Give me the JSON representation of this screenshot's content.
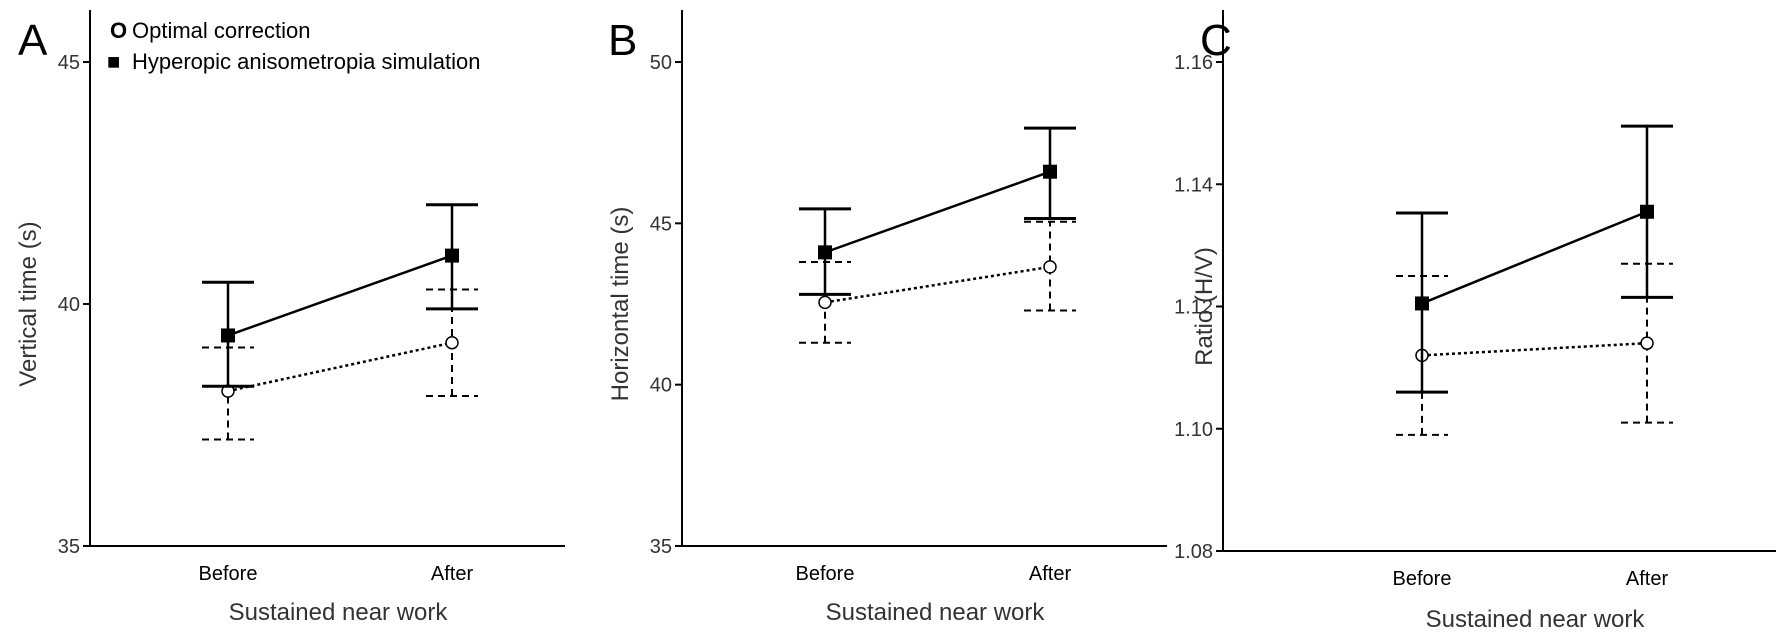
{
  "legend": {
    "entries": [
      {
        "marker": "O",
        "label": "Optimal correction"
      },
      {
        "marker": "■",
        "label": "Hyperopic anisometropia simulation"
      }
    ]
  },
  "chart_data": [
    {
      "panel": "A",
      "type": "line",
      "xlabel": "Sustained near work",
      "ylabel": "Vertical time (s)",
      "categories": [
        "Before",
        "After"
      ],
      "ylim": [
        35,
        45
      ],
      "yticks": [
        "35",
        "40",
        "45"
      ],
      "series": [
        {
          "name": "Optimal correction",
          "values": [
            38.2,
            39.2
          ],
          "ci_low": [
            37.2,
            38.1
          ],
          "ci_high": [
            39.1,
            40.3
          ],
          "marker": "circle",
          "line": "dotted",
          "errorbar": "dashed"
        },
        {
          "name": "Hyperopic anisometropia simulation",
          "values": [
            39.35,
            41.0
          ],
          "ci_low": [
            38.3,
            39.9
          ],
          "ci_high": [
            40.45,
            42.05
          ],
          "marker": "square",
          "line": "solid",
          "errorbar": "solid"
        }
      ]
    },
    {
      "panel": "B",
      "type": "line",
      "xlabel": "Sustained near work",
      "ylabel": "Horizontal time (s)",
      "categories": [
        "Before",
        "After"
      ],
      "ylim": [
        35,
        50
      ],
      "yticks": [
        "35",
        "40",
        "45",
        "50"
      ],
      "series": [
        {
          "name": "Optimal correction",
          "values": [
            42.55,
            43.65
          ],
          "ci_low": [
            41.3,
            42.3
          ],
          "ci_high": [
            43.8,
            45.05
          ],
          "marker": "circle",
          "line": "dotted",
          "errorbar": "dashed"
        },
        {
          "name": "Hyperopic anisometropia simulation",
          "values": [
            44.1,
            46.6
          ],
          "ci_low": [
            42.8,
            45.15
          ],
          "ci_high": [
            45.45,
            47.95
          ],
          "marker": "square",
          "line": "solid",
          "errorbar": "solid"
        }
      ]
    },
    {
      "panel": "C",
      "type": "line",
      "xlabel": "Sustained near work",
      "ylabel": "Ratio (H/V)",
      "categories": [
        "Before",
        "After"
      ],
      "ylim": [
        1.08,
        1.16
      ],
      "yticks": [
        "1.08",
        "1.10",
        "1.12",
        "1.14",
        "1.16"
      ],
      "series": [
        {
          "name": "Optimal correction",
          "values": [
            1.112,
            1.114
          ],
          "ci_low": [
            1.099,
            1.101
          ],
          "ci_high": [
            1.125,
            1.127
          ],
          "marker": "circle",
          "line": "dotted",
          "errorbar": "dashed"
        },
        {
          "name": "Hyperopic anisometropia simulation",
          "values": [
            1.1205,
            1.1355
          ],
          "ci_low": [
            1.106,
            1.1215
          ],
          "ci_high": [
            1.1353,
            1.1495
          ],
          "marker": "square",
          "line": "solid",
          "errorbar": "solid"
        }
      ]
    }
  ]
}
